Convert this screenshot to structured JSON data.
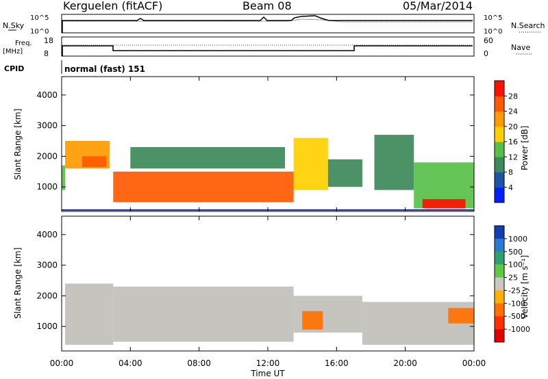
{
  "header": {
    "station": "Kerguelen (fitACF)",
    "beam": "Beam 08",
    "date": "05/Mar/2014"
  },
  "sky_panel": {
    "left_label": "N.Sky",
    "right_label": "N.Search",
    "left_ticks": [
      "10^5",
      "10^0"
    ],
    "right_ticks": [
      "10^5",
      "10^0"
    ]
  },
  "freq_panel": {
    "left_label_1": "Freq.",
    "left_label_2": "[MHz]",
    "right_label": "Nave",
    "left_ticks": [
      "18",
      "8"
    ],
    "right_ticks": [
      "60",
      "0"
    ]
  },
  "cpid": {
    "label": "CPID",
    "value": "normal (fast) 151"
  },
  "x_axis": {
    "label": "Time UT",
    "ticks": [
      "00:00",
      "04:00",
      "08:00",
      "12:00",
      "16:00",
      "20:00",
      "00:00"
    ]
  },
  "colors": {
    "power_scale": [
      "#0020ff",
      "#1a55a8",
      "#3c8a5a",
      "#58c048",
      "#ffd000",
      "#ff9a00",
      "#ff5a00",
      "#ff1000"
    ],
    "velocity_scale": [
      "#1040b0",
      "#2a7ad0",
      "#30a070",
      "#60c840",
      "#c8c8c0",
      "#ffb000",
      "#ff7000",
      "#ff3000",
      "#e00000"
    ],
    "ground_scatter": "#c0bfb8"
  },
  "chart_data": [
    {
      "type": "heatmap",
      "title": "",
      "ylabel": "Slant Range [km]",
      "xlabel": "",
      "xlim": [
        0,
        24
      ],
      "ylim": [
        200,
        4600
      ],
      "yticks": [
        "1000",
        "2000",
        "3000",
        "4000"
      ],
      "colorbar": {
        "label": "Power [dB]",
        "ticks": [
          "4",
          "8",
          "12",
          "16",
          "20",
          "24",
          "28"
        ],
        "range": [
          0,
          32
        ]
      },
      "regions": [
        {
          "x": [
            0.0,
            0.2
          ],
          "range": [
            900,
            1700
          ],
          "power": 14
        },
        {
          "x": [
            0.2,
            2.8
          ],
          "range": [
            1600,
            2500
          ],
          "power": 20
        },
        {
          "x": [
            1.2,
            2.6
          ],
          "range": [
            1650,
            2000
          ],
          "power": 27
        },
        {
          "x": [
            3.0,
            13.5
          ],
          "range": [
            500,
            1500
          ],
          "power": 27
        },
        {
          "x": [
            4.0,
            13.0
          ],
          "range": [
            1600,
            2300
          ],
          "power": 10
        },
        {
          "x": [
            13.5,
            15.5
          ],
          "range": [
            900,
            2600
          ],
          "power": 16
        },
        {
          "x": [
            15.5,
            17.5
          ],
          "range": [
            1000,
            1900
          ],
          "power": 10
        },
        {
          "x": [
            18.2,
            20.5
          ],
          "range": [
            900,
            2700
          ],
          "power": 8
        },
        {
          "x": [
            20.5,
            24.0
          ],
          "range": [
            300,
            1800
          ],
          "power": 12
        },
        {
          "x": [
            21.0,
            23.5
          ],
          "range": [
            300,
            600
          ],
          "power": 28
        }
      ]
    },
    {
      "type": "heatmap",
      "title": "",
      "ylabel": "Slant Range [km]",
      "xlabel": "Time UT",
      "xlim": [
        0,
        24
      ],
      "ylim": [
        200,
        4600
      ],
      "yticks": [
        "1000",
        "2000",
        "3000",
        "4000"
      ],
      "colorbar": {
        "label": "Velocity [m s⁻¹]",
        "ticks": [
          "1000",
          "500",
          "100",
          "25",
          "-25",
          "-100",
          "-500",
          "-1000"
        ]
      },
      "regions": [
        {
          "x": [
            0.2,
            3.0
          ],
          "range": [
            400,
            2400
          ],
          "velocity": 0,
          "ground_scatter": true
        },
        {
          "x": [
            3.0,
            13.5
          ],
          "range": [
            500,
            2300
          ],
          "velocity": 0,
          "ground_scatter": true
        },
        {
          "x": [
            13.5,
            17.5
          ],
          "range": [
            800,
            2000
          ],
          "velocity": 0,
          "ground_scatter": true
        },
        {
          "x": [
            14.0,
            15.2
          ],
          "range": [
            900,
            1500
          ],
          "velocity": -300
        },
        {
          "x": [
            17.5,
            24.0
          ],
          "range": [
            400,
            1800
          ],
          "velocity": 0,
          "ground_scatter": true
        },
        {
          "x": [
            22.5,
            24.0
          ],
          "range": [
            1100,
            1600
          ],
          "velocity": -200
        }
      ]
    }
  ]
}
